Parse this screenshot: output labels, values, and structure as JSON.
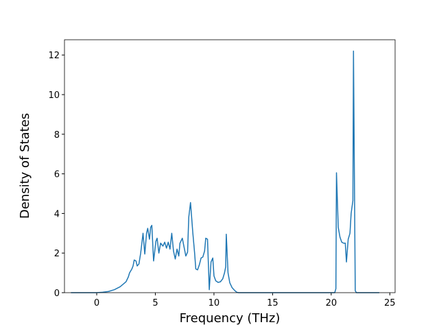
{
  "chart_data": {
    "type": "line",
    "x_label": "Frequency (THz)",
    "y_label": "Density of States",
    "color": "#1f77b4",
    "x": [
      -2.2,
      0,
      0.5,
      1,
      1.5,
      2,
      2.5,
      2.7,
      2.8,
      3.0,
      3.1,
      3.2,
      3.35,
      3.45,
      3.6,
      3.75,
      3.95,
      4.1,
      4.25,
      4.35,
      4.5,
      4.6,
      4.7,
      4.85,
      5.05,
      5.15,
      5.3,
      5.45,
      5.65,
      5.8,
      5.95,
      6.1,
      6.25,
      6.4,
      6.55,
      6.7,
      6.85,
      7.0,
      7.1,
      7.3,
      7.45,
      7.6,
      7.75,
      7.85,
      8.0,
      8.2,
      8.35,
      8.45,
      8.6,
      8.75,
      8.9,
      9.05,
      9.2,
      9.3,
      9.45,
      9.6,
      9.75,
      9.9,
      10.0,
      10.15,
      10.35,
      10.55,
      10.75,
      10.9,
      11.0,
      11.05,
      11.2,
      11.35,
      11.55,
      11.75,
      11.95,
      12.1,
      20.3,
      20.4,
      20.45,
      20.6,
      20.75,
      20.9,
      21.05,
      21.2,
      21.3,
      21.45,
      21.6,
      21.7,
      21.85,
      21.9,
      22.05,
      22.15,
      24.1
    ],
    "values": [
      0,
      0,
      0.02,
      0.06,
      0.15,
      0.3,
      0.55,
      0.8,
      1.0,
      1.2,
      1.35,
      1.65,
      1.6,
      1.35,
      1.45,
      2.0,
      3.0,
      1.95,
      3.0,
      3.25,
      2.7,
      3.3,
      3.4,
      1.6,
      2.6,
      2.75,
      2.0,
      2.5,
      2.35,
      2.55,
      2.25,
      2.55,
      2.2,
      3.0,
      2.1,
      1.7,
      2.2,
      1.85,
      2.5,
      2.75,
      2.3,
      1.85,
      2.05,
      3.8,
      4.55,
      3.0,
      2.0,
      1.2,
      1.15,
      1.4,
      1.75,
      1.8,
      2.1,
      2.75,
      2.7,
      0.15,
      1.55,
      1.75,
      0.85,
      0.6,
      0.52,
      0.55,
      0.7,
      1.0,
      1.3,
      2.95,
      1.0,
      0.5,
      0.25,
      0.12,
      0.02,
      0,
      0,
      0.2,
      6.05,
      3.3,
      2.8,
      2.55,
      2.5,
      2.5,
      1.55,
      2.7,
      3.0,
      4.0,
      4.65,
      12.2,
      0.1,
      0,
      0
    ],
    "xlim": [
      -2.75,
      25.45
    ],
    "ylim": [
      0,
      12.77
    ],
    "xticks": [
      0,
      5,
      10,
      15,
      20,
      25
    ],
    "yticks": [
      0,
      2,
      4,
      6,
      8,
      10,
      12
    ]
  }
}
